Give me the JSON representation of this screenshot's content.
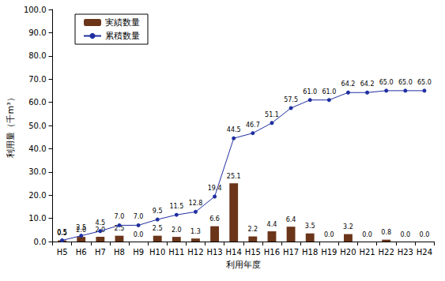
{
  "chart_data": {
    "type": "bar",
    "x_label": "利用年度",
    "y_label": "利用量（千m³）",
    "categories": [
      "H5",
      "H6",
      "H7",
      "H8",
      "H9",
      "H10",
      "H11",
      "H12",
      "H13",
      "H14",
      "H15",
      "H16",
      "H17",
      "H18",
      "H19",
      "H20",
      "H21",
      "H22",
      "H23",
      "H24"
    ],
    "series": [
      {
        "name": "実績数量",
        "type": "bar",
        "color": "#6b3519",
        "values": [
          0.5,
          2.0,
          2.0,
          2.5,
          0.0,
          2.5,
          2.0,
          1.3,
          6.6,
          25.1,
          2.2,
          4.4,
          6.4,
          3.5,
          0.0,
          3.2,
          0.0,
          0.8,
          0.0,
          0.0
        ],
        "value_labels": [
          "0.5",
          "2.0",
          "2.0",
          "2.5",
          "0.0",
          "2.5",
          "2.0",
          "1.3",
          "6.6",
          "25.1",
          "2.2",
          "4.4",
          "6.4",
          "3.5",
          "0.0",
          "3.2",
          "0.0",
          "0.8",
          "0.0",
          "0.0"
        ]
      },
      {
        "name": "累積数量",
        "type": "line",
        "color": "#1f2fa0",
        "marker": "circle",
        "values": [
          0.5,
          2.5,
          4.5,
          7.0,
          7.0,
          9.5,
          11.5,
          12.8,
          19.4,
          44.5,
          46.7,
          51.1,
          57.5,
          61.0,
          61.0,
          64.2,
          64.2,
          65.0,
          65.0,
          65.0
        ],
        "value_labels": [
          "0.5",
          "2.5",
          "4.5",
          "7.0",
          "7.0",
          "9.5",
          "11.5",
          "12.8",
          "19.4",
          "44.5",
          "46.7",
          "51.1",
          "57.5",
          "61.0",
          "61.0",
          "64.2",
          "64.2",
          "65.0",
          "65.0",
          "65.0"
        ]
      }
    ],
    "ylim": [
      0,
      100
    ],
    "yticks": [
      {
        "value": 0,
        "label": "0.0"
      },
      {
        "value": 10,
        "label": "10.0"
      },
      {
        "value": 20,
        "label": "20.0"
      },
      {
        "value": 30,
        "label": "30.0"
      },
      {
        "value": 40,
        "label": "40.0"
      },
      {
        "value": 50,
        "label": "50.0"
      },
      {
        "value": 60,
        "label": "60.0"
      },
      {
        "value": 70,
        "label": "70.0"
      },
      {
        "value": 80,
        "label": "80.0"
      },
      {
        "value": 90,
        "label": "90.0"
      },
      {
        "value": 100,
        "label": "100.0"
      }
    ],
    "grid": false,
    "legend": "top-left",
    "data_labels": true
  }
}
